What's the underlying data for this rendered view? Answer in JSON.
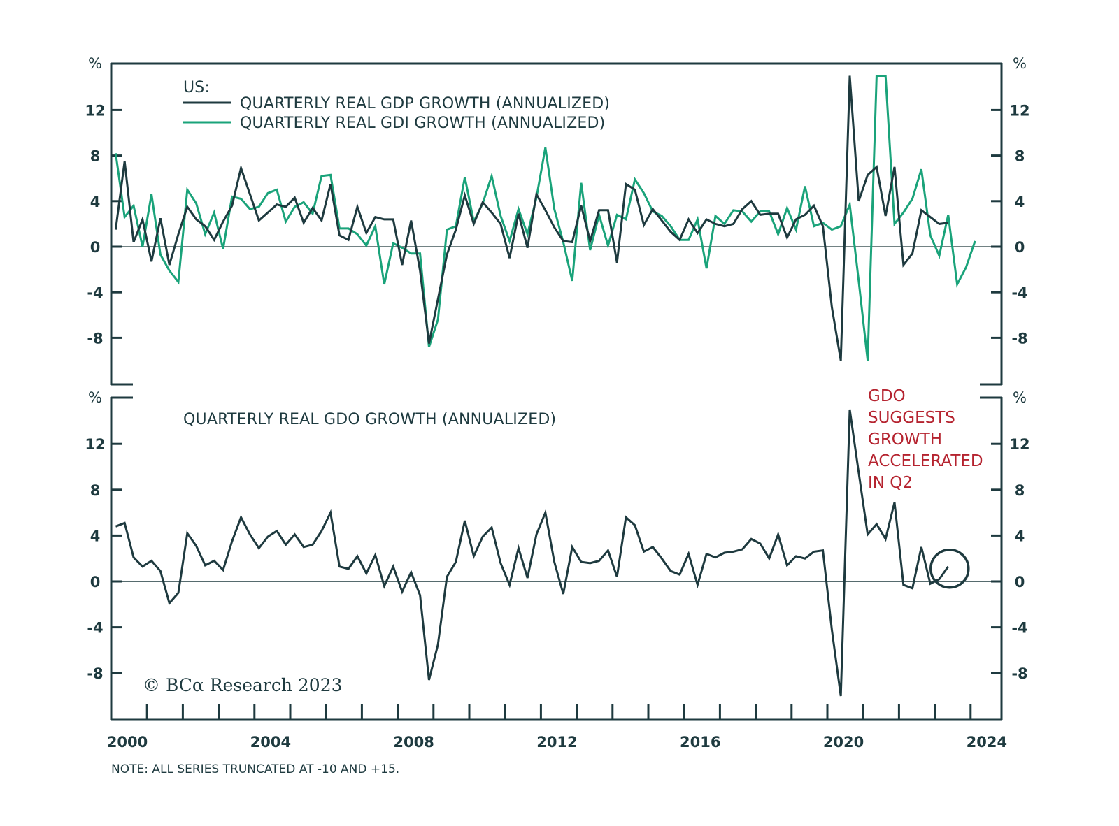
{
  "chart_data": [
    {
      "type": "line",
      "panel": "top",
      "title": "US:",
      "ylabel": "%",
      "xlabel": "",
      "ylim": [
        -10,
        15
      ],
      "yticks": [
        12,
        8,
        4,
        0,
        -4,
        -8
      ],
      "x_start": "2000Q1",
      "x_ticks": [
        "2000",
        "2004",
        "2008",
        "2012",
        "2016",
        "2020",
        "2024"
      ],
      "legend": "top-left",
      "series": [
        {
          "name": "QUARTERLY REAL GDP GROWTH (ANNUALIZED)",
          "color": "#1e3a3f",
          "values": [
            1.5,
            7.5,
            0.4,
            2.4,
            -1.3,
            2.5,
            -1.6,
            1.1,
            3.5,
            2.4,
            1.8,
            0.6,
            2.2,
            3.6,
            6.9,
            4.6,
            2.3,
            3.0,
            3.7,
            3.5,
            4.3,
            2.1,
            3.4,
            2.3,
            5.5,
            1.0,
            0.6,
            3.5,
            1.2,
            2.6,
            2.4,
            2.4,
            -1.6,
            2.3,
            -2.1,
            -8.5,
            -4.6,
            -0.7,
            1.5,
            4.5,
            2.0,
            3.9,
            3.0,
            2.0,
            -1.0,
            2.9,
            -0.1,
            4.6,
            3.2,
            1.7,
            0.5,
            0.4,
            3.6,
            0.5,
            3.2,
            3.2,
            -1.4,
            5.5,
            5.0,
            1.9,
            3.3,
            2.3,
            1.3,
            0.6,
            2.4,
            1.2,
            2.4,
            2.0,
            1.8,
            2.0,
            3.3,
            4.0,
            2.8,
            2.9,
            2.9,
            0.8,
            2.4,
            2.8,
            3.6,
            1.8,
            -5.3,
            -10.0,
            15.0,
            4.0,
            6.3,
            7.0,
            2.7,
            7.0,
            -1.6,
            -0.6,
            3.2,
            2.6,
            2.0,
            2.1
          ],
          "truncated": "values clipped at -10 and +15"
        },
        {
          "name": "QUARTERLY REAL GDI GROWTH (ANNUALIZED)",
          "color": "#1aa37a",
          "values": [
            8.2,
            2.6,
            3.6,
            0.0,
            4.6,
            -0.7,
            -2.1,
            -3.1,
            5.0,
            3.8,
            1.1,
            3.0,
            -0.2,
            4.4,
            4.2,
            3.3,
            3.5,
            4.7,
            5.0,
            2.2,
            3.5,
            3.9,
            2.9,
            6.2,
            6.3,
            1.6,
            1.6,
            1.1,
            0.1,
            1.8,
            -3.3,
            0.3,
            -0.1,
            -0.6,
            -0.6,
            -8.8,
            -6.4,
            1.5,
            1.8,
            6.1,
            2.2,
            3.8,
            6.2,
            2.7,
            0.5,
            3.3,
            1.1,
            4.3,
            8.7,
            3.3,
            0.4,
            -3.0,
            5.6,
            -0.3,
            2.8,
            0.1,
            2.8,
            2.4,
            5.9,
            4.7,
            3.1,
            2.7,
            1.8,
            0.6,
            0.6,
            2.4,
            -1.9,
            2.7,
            2.0,
            3.2,
            3.1,
            2.2,
            3.1,
            3.1,
            1.1,
            3.4,
            1.5,
            5.3,
            1.8,
            2.1,
            1.5,
            1.8,
            3.7,
            -3.0,
            -10.0,
            15.0,
            15.0,
            2.0,
            3.0,
            4.2,
            6.8,
            1.0,
            -0.8,
            2.8,
            -3.3,
            -1.8,
            0.5
          ],
          "truncated": "values clipped at -10 and +15"
        }
      ]
    },
    {
      "type": "line",
      "panel": "bottom",
      "title": "QUARTERLY REAL GDO GROWTH (ANNUALIZED)",
      "ylabel": "%",
      "xlabel": "",
      "ylim": [
        -10,
        15
      ],
      "yticks": [
        12,
        8,
        4,
        0,
        -4,
        -8
      ],
      "x_start": "2000Q1",
      "x_ticks": [
        "2000",
        "2004",
        "2008",
        "2012",
        "2016",
        "2020",
        "2024"
      ],
      "series": [
        {
          "name": "QUARTERLY REAL GDO GROWTH (ANNUALIZED)",
          "color": "#1e3a3f",
          "values": [
            4.8,
            5.1,
            2.1,
            1.3,
            1.8,
            0.9,
            -1.9,
            -1.0,
            4.2,
            3.1,
            1.4,
            1.8,
            1.0,
            3.5,
            5.6,
            4.1,
            2.9,
            3.9,
            4.4,
            3.2,
            4.1,
            3.0,
            3.2,
            4.4,
            6.0,
            1.3,
            1.1,
            2.2,
            0.7,
            2.3,
            -0.4,
            1.3,
            -0.9,
            0.8,
            -1.2,
            -8.6,
            -5.5,
            0.4,
            1.7,
            5.3,
            2.2,
            3.9,
            4.7,
            1.6,
            -0.3,
            2.9,
            0.3,
            4.1,
            6.0,
            1.7,
            -1.1,
            3.0,
            1.7,
            1.6,
            1.8,
            2.7,
            0.4,
            5.6,
            4.9,
            2.6,
            3.0,
            2.0,
            0.9,
            0.6,
            2.4,
            -0.3,
            2.4,
            2.1,
            2.5,
            2.6,
            2.8,
            3.7,
            3.3,
            2.0,
            4.1,
            1.4,
            2.2,
            2.0,
            2.6,
            2.7,
            -4.2,
            -10.0,
            15.0,
            9.5,
            4.1,
            5.0,
            3.7,
            6.9,
            -0.3,
            -0.6,
            3.0,
            -0.2,
            0.2,
            1.3
          ]
        }
      ],
      "annotation": {
        "text_lines": [
          "GDO",
          "SUGGESTS",
          "GROWTH",
          "ACCELERATED",
          "IN Q2"
        ],
        "color": "#b5232f",
        "highlight": "circle around last data point (2023Q2)"
      }
    }
  ],
  "labels": {
    "pct": "%",
    "legend_heading": "US:",
    "gdp_legend": "QUARTERLY REAL GDP GROWTH (ANNUALIZED)",
    "gdi_legend": "QUARTERLY REAL GDI GROWTH (ANNUALIZED)",
    "gdo_title": "QUARTERLY REAL GDO GROWTH (ANNUALIZED)",
    "annotation_lines": [
      "GDO",
      "SUGGESTS",
      "GROWTH",
      "ACCELERATED",
      "IN Q2"
    ],
    "copyright": "© BCα Research 2023",
    "note": "NOTE: ALL SERIES TRUNCATED AT -10 AND +15.",
    "y_tick_labels": [
      "12",
      "8",
      "4",
      "0",
      "-4",
      "-8"
    ],
    "x_tick_labels": [
      "2000",
      "2004",
      "2008",
      "2012",
      "2016",
      "2020",
      "2024"
    ]
  },
  "colors": {
    "frame": "#1e3a3f",
    "gdp": "#1e3a3f",
    "gdi": "#1aa37a",
    "gdo": "#1e3a3f",
    "annotation": "#b5232f"
  }
}
